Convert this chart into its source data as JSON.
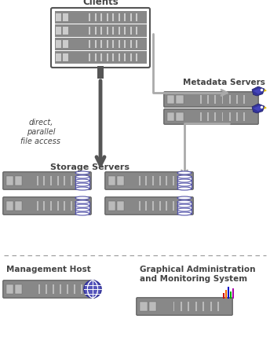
{
  "bg_color": "#ffffff",
  "clients_label": "Clients",
  "metadata_label": "Metadata Servers",
  "storage_label": "Storage Servers",
  "mgmt_label": "Management Host",
  "graphical_label": "Graphical Administration\nand Monitoring System",
  "direct_label": "direct,\nparallel\nfile access",
  "text_color": "#444444",
  "server_dark": "#666666",
  "server_mid": "#888888",
  "server_light": "#bbbbbb",
  "arrow_gray": "#aaaaaa",
  "arrow_dark": "#555555",
  "disk_color": "#5555aa",
  "globe_color": "#5555bb",
  "bar_colors": [
    "#cc0000",
    "#ff6600",
    "#0000cc",
    "#00aa00",
    "#aa00aa"
  ],
  "bird_body": "#333399",
  "bird_beak": "#ddbb00"
}
